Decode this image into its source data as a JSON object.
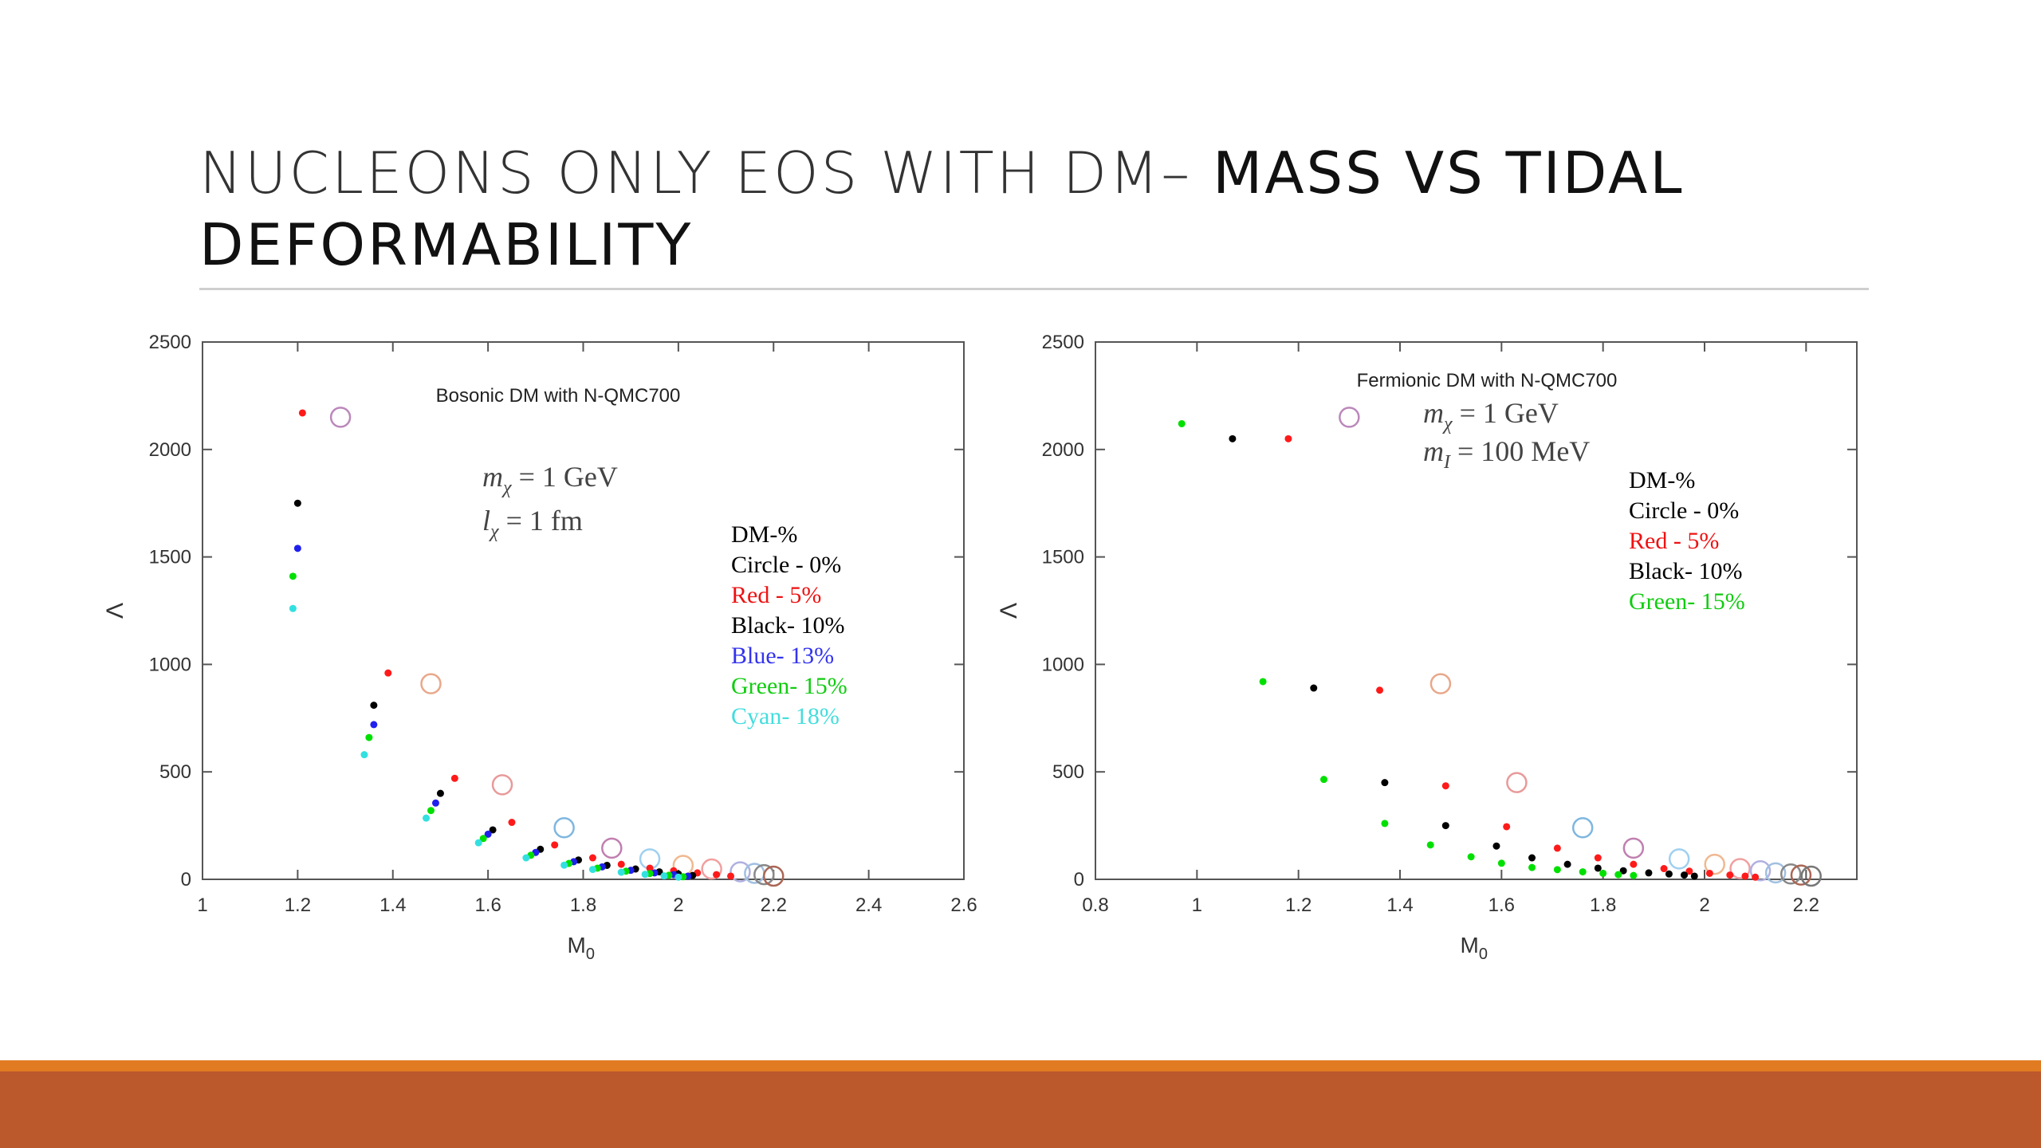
{
  "slide": {
    "title_light": "NUCLEONS ONLY EOS WITH DM– ",
    "title_bold_1": "MASS VS TIDAL",
    "title_bold_2": "DEFORMABILITY"
  },
  "colors": {
    "band_top": "#e07b22",
    "band_main": "#bb582c",
    "circle": "open circles (various pastel colors)",
    "red": "#ff0000",
    "black": "#000000",
    "blue": "#1a1aff",
    "green": "#00dd00",
    "cyan": "#22dddd"
  },
  "chart_data": [
    {
      "type": "scatter",
      "title": "Bosonic DM with N-QMC700",
      "xlabel": "M",
      "xlabel_sub": "0",
      "ylabel": "Λ",
      "xlim": [
        1,
        2.6
      ],
      "ylim": [
        0,
        2500
      ],
      "xticks": [
        "1",
        "1.2",
        "1.4",
        "1.6",
        "1.8",
        "2",
        "2.2",
        "2.4",
        "2.6"
      ],
      "yticks": [
        "0",
        "500",
        "1000",
        "1500",
        "2000",
        "2500"
      ],
      "params": [
        "m",
        "χ",
        " = 1 GeV",
        "l",
        "χ",
        " = 1 fm"
      ],
      "legend": [
        "DM-%",
        "Circle - 0%",
        "Red - 5%",
        "Black- 10%",
        "Blue- 13%",
        "Green- 15%",
        "Cyan- 18%"
      ],
      "grid": false,
      "legend_position": "right",
      "series": [
        {
          "color": "circle",
          "points": [
            [
              1.29,
              2150
            ],
            [
              1.48,
              910
            ],
            [
              1.63,
              440
            ],
            [
              1.76,
              240
            ],
            [
              1.86,
              145
            ],
            [
              1.94,
              95
            ],
            [
              2.01,
              65
            ],
            [
              2.07,
              48
            ],
            [
              2.13,
              35
            ],
            [
              2.16,
              28
            ],
            [
              2.18,
              22
            ],
            [
              2.2,
              15
            ]
          ]
        },
        {
          "color": "red",
          "points": [
            [
              1.21,
              2170
            ],
            [
              1.39,
              960
            ],
            [
              1.53,
              470
            ],
            [
              1.65,
              265
            ],
            [
              1.74,
              160
            ],
            [
              1.82,
              100
            ],
            [
              1.88,
              70
            ],
            [
              1.94,
              52
            ],
            [
              1.99,
              40
            ],
            [
              2.04,
              30
            ],
            [
              2.08,
              22
            ],
            [
              2.11,
              15
            ]
          ]
        },
        {
          "color": "black",
          "points": [
            [
              1.2,
              1750
            ],
            [
              1.36,
              810
            ],
            [
              1.5,
              400
            ],
            [
              1.61,
              230
            ],
            [
              1.71,
              140
            ],
            [
              1.79,
              90
            ],
            [
              1.85,
              65
            ],
            [
              1.91,
              48
            ],
            [
              1.96,
              35
            ],
            [
              2.0,
              25
            ],
            [
              2.03,
              18
            ]
          ]
        },
        {
          "color": "blue",
          "points": [
            [
              1.2,
              1540
            ],
            [
              1.36,
              720
            ],
            [
              1.49,
              355
            ],
            [
              1.6,
              210
            ],
            [
              1.7,
              125
            ],
            [
              1.78,
              82
            ],
            [
              1.84,
              58
            ],
            [
              1.9,
              42
            ],
            [
              1.95,
              30
            ],
            [
              1.99,
              22
            ],
            [
              2.02,
              15
            ]
          ]
        },
        {
          "color": "green",
          "points": [
            [
              1.19,
              1410
            ],
            [
              1.35,
              660
            ],
            [
              1.48,
              320
            ],
            [
              1.59,
              190
            ],
            [
              1.69,
              112
            ],
            [
              1.77,
              74
            ],
            [
              1.83,
              52
            ],
            [
              1.89,
              38
            ],
            [
              1.94,
              27
            ],
            [
              1.98,
              19
            ],
            [
              2.01,
              12
            ]
          ]
        },
        {
          "color": "cyan",
          "points": [
            [
              1.19,
              1260
            ],
            [
              1.34,
              580
            ],
            [
              1.47,
              285
            ],
            [
              1.58,
              170
            ],
            [
              1.68,
              100
            ],
            [
              1.76,
              66
            ],
            [
              1.82,
              46
            ],
            [
              1.88,
              33
            ],
            [
              1.93,
              23
            ],
            [
              1.97,
              16
            ],
            [
              2.0,
              10
            ]
          ]
        }
      ]
    },
    {
      "type": "scatter",
      "title": "Fermionic DM with N-QMC700",
      "xlabel": "M",
      "xlabel_sub": "0",
      "ylabel": "Λ",
      "xlim": [
        0.8,
        2.3
      ],
      "ylim": [
        0,
        2500
      ],
      "xticks": [
        "0.8",
        "1",
        "1.2",
        "1.4",
        "1.6",
        "1.8",
        "2",
        "2.2"
      ],
      "yticks": [
        "0",
        "500",
        "1000",
        "1500",
        "2000",
        "2500"
      ],
      "params": [
        "m",
        "χ",
        " = 1 GeV",
        "m",
        "I",
        " = 100 MeV"
      ],
      "legend": [
        "DM-%",
        "Circle - 0%",
        "Red - 5%",
        "Black- 10%",
        "Green- 15%"
      ],
      "grid": false,
      "legend_position": "right",
      "series": [
        {
          "color": "circle",
          "points": [
            [
              1.3,
              2150
            ],
            [
              1.48,
              910
            ],
            [
              1.63,
              450
            ],
            [
              1.76,
              240
            ],
            [
              1.86,
              145
            ],
            [
              1.95,
              95
            ],
            [
              2.02,
              70
            ],
            [
              2.07,
              50
            ],
            [
              2.11,
              40
            ],
            [
              2.14,
              30
            ],
            [
              2.17,
              25
            ],
            [
              2.19,
              20
            ],
            [
              2.21,
              15
            ]
          ]
        },
        {
          "color": "red",
          "points": [
            [
              1.18,
              2050
            ],
            [
              1.36,
              880
            ],
            [
              1.49,
              435
            ],
            [
              1.61,
              245
            ],
            [
              1.71,
              145
            ],
            [
              1.79,
              100
            ],
            [
              1.86,
              70
            ],
            [
              1.92,
              50
            ],
            [
              1.97,
              38
            ],
            [
              2.01,
              28
            ],
            [
              2.05,
              20
            ],
            [
              2.08,
              15
            ],
            [
              2.1,
              10
            ]
          ]
        },
        {
          "color": "black",
          "points": [
            [
              1.07,
              2050
            ],
            [
              1.23,
              890
            ],
            [
              1.37,
              450
            ],
            [
              1.49,
              250
            ],
            [
              1.59,
              155
            ],
            [
              1.66,
              100
            ],
            [
              1.73,
              70
            ],
            [
              1.79,
              52
            ],
            [
              1.84,
              40
            ],
            [
              1.89,
              30
            ],
            [
              1.93,
              25
            ],
            [
              1.96,
              20
            ],
            [
              1.98,
              15
            ]
          ]
        },
        {
          "color": "green",
          "points": [
            [
              0.97,
              2120
            ],
            [
              1.13,
              920
            ],
            [
              1.25,
              465
            ],
            [
              1.37,
              260
            ],
            [
              1.46,
              160
            ],
            [
              1.54,
              105
            ],
            [
              1.6,
              75
            ],
            [
              1.66,
              55
            ],
            [
              1.71,
              45
            ],
            [
              1.76,
              35
            ],
            [
              1.8,
              28
            ],
            [
              1.83,
              22
            ],
            [
              1.86,
              18
            ]
          ]
        }
      ]
    }
  ]
}
